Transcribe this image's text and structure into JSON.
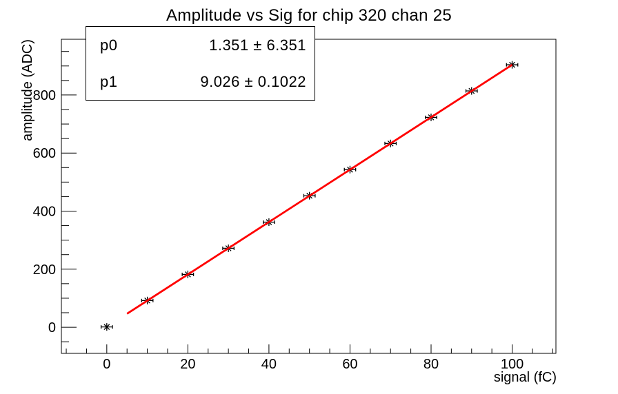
{
  "title": "Amplitude vs Sig for chip 320 chan 25",
  "stats_box": {
    "rows": [
      {
        "label": "p0",
        "value": "1.351 ± 6.351"
      },
      {
        "label": "p1",
        "value": "9.026 ± 0.1022"
      }
    ]
  },
  "chart_data": {
    "type": "scatter",
    "title": "Amplitude vs Sig for chip 320 chan 25",
    "xlabel": "signal (fC)",
    "ylabel": "amplitude (ADC)",
    "x": [
      0,
      10,
      20,
      30,
      40,
      50,
      60,
      70,
      80,
      90,
      100
    ],
    "y": [
      1,
      92,
      182,
      272,
      362,
      453,
      543,
      633,
      723,
      814,
      904
    ],
    "x_error": 1.4,
    "marker": "asterisk",
    "marker_color": "#000000",
    "xlim": [
      -11.2,
      110.8
    ],
    "ylim": [
      -90,
      992
    ],
    "x_ticks": [
      0,
      20,
      40,
      60,
      80,
      100
    ],
    "x_minor_step": 5,
    "y_ticks": [
      0,
      200,
      400,
      600,
      800
    ],
    "y_minor_step": 50,
    "grid": false,
    "legend": false,
    "frame_color": "#000000",
    "fit": {
      "name": "pol1",
      "p0": 1.351,
      "p1": 9.026,
      "range": [
        5,
        100
      ],
      "color": "#ff0000"
    }
  }
}
